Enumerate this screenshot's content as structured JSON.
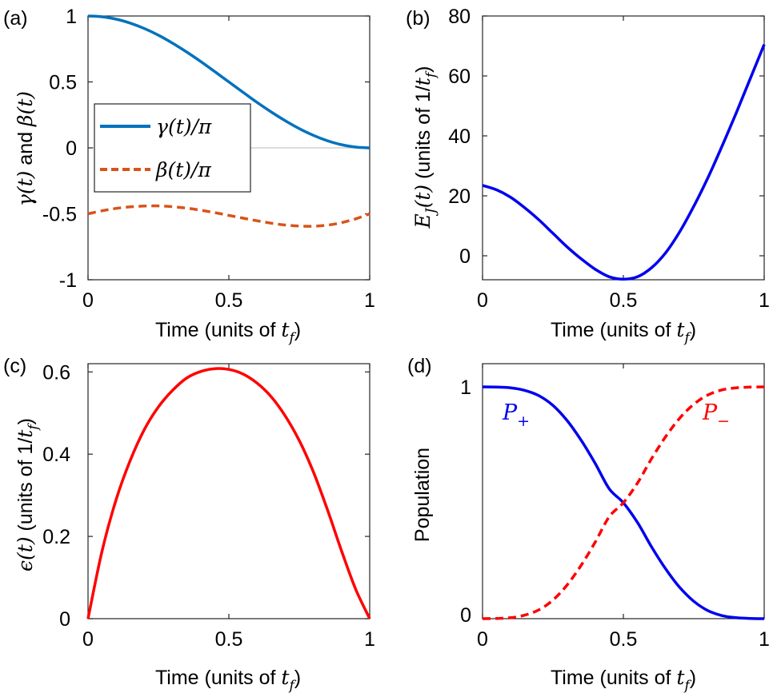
{
  "chart_data": [
    {
      "panel": "(a)",
      "type": "line",
      "xlabel_text": "Time (units of ",
      "xlabel_math": "t",
      "xlabel_sub": "f",
      "xlabel_close": ")",
      "ylabel_math1": "γ(t)",
      "ylabel_text": " and ",
      "ylabel_math2": "β(t)",
      "xlim": [
        0,
        1
      ],
      "ylim": [
        -1,
        1
      ],
      "xticks": [
        0,
        0.5,
        1
      ],
      "xtick_labels": [
        "0",
        "0.5",
        "1"
      ],
      "yticks": [
        -1,
        -0.5,
        0,
        0.5,
        1
      ],
      "ytick_labels": [
        "-1",
        "-0.5",
        "0",
        "0.5",
        "1"
      ],
      "legend_position": "center-left",
      "zero_line": true,
      "series": [
        {
          "name": "γ(t)/π",
          "color": "#0072BD",
          "dash": "solid",
          "x": [
            0,
            0.05,
            0.1,
            0.15,
            0.2,
            0.25,
            0.3,
            0.35,
            0.4,
            0.45,
            0.5,
            0.55,
            0.6,
            0.65,
            0.7,
            0.75,
            0.8,
            0.85,
            0.9,
            0.95,
            1
          ],
          "y": [
            1.0,
            0.994,
            0.976,
            0.946,
            0.905,
            0.854,
            0.794,
            0.727,
            0.655,
            0.578,
            0.5,
            0.422,
            0.345,
            0.273,
            0.206,
            0.146,
            0.095,
            0.054,
            0.024,
            0.006,
            0.0
          ]
        },
        {
          "name": "β(t)/π",
          "color": "#D95319",
          "dash": "dashed",
          "x": [
            0,
            0.05,
            0.1,
            0.15,
            0.2,
            0.25,
            0.3,
            0.35,
            0.4,
            0.45,
            0.5,
            0.55,
            0.6,
            0.65,
            0.7,
            0.75,
            0.8,
            0.85,
            0.9,
            0.95,
            1
          ],
          "y": [
            -0.5,
            -0.477,
            -0.459,
            -0.447,
            -0.441,
            -0.44,
            -0.446,
            -0.457,
            -0.473,
            -0.491,
            -0.512,
            -0.533,
            -0.553,
            -0.571,
            -0.585,
            -0.593,
            -0.594,
            -0.586,
            -0.567,
            -0.538,
            -0.5
          ]
        }
      ]
    },
    {
      "panel": "(b)",
      "type": "line",
      "xlabel_text": "Time (units of ",
      "xlabel_math": "t",
      "xlabel_sub": "f",
      "xlabel_close": ")",
      "ylabel_math": "E",
      "ylabel_math_sub": "J",
      "ylabel_math_tail": "(t)",
      "ylabel_text": " (units of 1/",
      "ylabel_math2": "t",
      "ylabel_math2_sub": "f",
      "ylabel_close": ")",
      "xlim": [
        0,
        1
      ],
      "ylim": [
        -8,
        80
      ],
      "xticks": [
        0,
        0.5,
        1
      ],
      "xtick_labels": [
        "0",
        "0.5",
        "1"
      ],
      "yticks": [
        0,
        20,
        40,
        60,
        80
      ],
      "ytick_labels": [
        "0",
        "20",
        "40",
        "60",
        "80"
      ],
      "series": [
        {
          "name": "",
          "color": "#0000EE",
          "dash": "solid",
          "x": [
            0,
            0.05,
            0.1,
            0.15,
            0.2,
            0.25,
            0.3,
            0.35,
            0.4,
            0.45,
            0.5,
            0.55,
            0.6,
            0.65,
            0.7,
            0.75,
            0.8,
            0.85,
            0.9,
            0.95,
            1
          ],
          "y": [
            23.5,
            22.0,
            19.5,
            16.0,
            12.0,
            7.5,
            3.0,
            -1.0,
            -4.5,
            -7.0,
            -7.8,
            -7.0,
            -4.0,
            1.0,
            8.0,
            16.5,
            26.0,
            36.5,
            47.5,
            59.0,
            70.5
          ]
        }
      ]
    },
    {
      "panel": "(c)",
      "type": "line",
      "xlabel_text": "Time (units of ",
      "xlabel_math": "t",
      "xlabel_sub": "f",
      "xlabel_close": ")",
      "ylabel_math": "ϵ(t)",
      "ylabel_text": " (units of 1/",
      "ylabel_math2": "t",
      "ylabel_math2_sub": "f",
      "ylabel_close": ")",
      "xlim": [
        0,
        1
      ],
      "ylim": [
        0,
        0.62
      ],
      "xticks": [
        0,
        0.5,
        1
      ],
      "xtick_labels": [
        "0",
        "0.5",
        "1"
      ],
      "yticks": [
        0,
        0.2,
        0.4,
        0.6
      ],
      "ytick_labels": [
        "0",
        "0.2",
        "0.4",
        "0.6"
      ],
      "series": [
        {
          "name": "",
          "color": "#FF0000",
          "dash": "solid",
          "x": [
            0,
            0.05,
            0.1,
            0.15,
            0.2,
            0.25,
            0.3,
            0.35,
            0.4,
            0.45,
            0.5,
            0.55,
            0.6,
            0.65,
            0.7,
            0.75,
            0.8,
            0.85,
            0.9,
            0.95,
            1
          ],
          "y": [
            0.0,
            0.165,
            0.29,
            0.385,
            0.46,
            0.515,
            0.555,
            0.585,
            0.601,
            0.608,
            0.606,
            0.595,
            0.573,
            0.54,
            0.493,
            0.433,
            0.357,
            0.265,
            0.165,
            0.072,
            0.0
          ]
        }
      ]
    },
    {
      "panel": "(d)",
      "type": "line",
      "xlabel_text": "Time (units of ",
      "xlabel_math": "t",
      "xlabel_sub": "f",
      "xlabel_close": ")",
      "ylabel": "Population",
      "xlim": [
        0,
        1
      ],
      "ylim": [
        0,
        1.1
      ],
      "xticks": [
        0,
        0.5,
        1
      ],
      "xtick_labels": [
        "0",
        "0.5",
        "1"
      ],
      "yticks": [
        0,
        1
      ],
      "ytick_labels": [
        "0",
        "1"
      ],
      "annotations": [
        {
          "text": "P",
          "sub": "+",
          "color": "#0000EE"
        },
        {
          "text": "P",
          "sub": "−",
          "color": "#FF0000"
        }
      ],
      "series": [
        {
          "name": "P+",
          "color": "#0000EE",
          "dash": "solid",
          "x": [
            0,
            0.05,
            0.1,
            0.15,
            0.2,
            0.25,
            0.3,
            0.35,
            0.4,
            0.45,
            0.5,
            0.55,
            0.6,
            0.65,
            0.7,
            0.75,
            0.8,
            0.85,
            0.9,
            0.95,
            1
          ],
          "y": [
            1.0,
            0.999,
            0.996,
            0.985,
            0.962,
            0.92,
            0.855,
            0.77,
            0.67,
            0.56,
            0.5,
            0.415,
            0.31,
            0.215,
            0.135,
            0.075,
            0.035,
            0.013,
            0.004,
            0.001,
            0.0
          ]
        },
        {
          "name": "P−",
          "color": "#FF0000",
          "dash": "dashed",
          "x": [
            0,
            0.05,
            0.1,
            0.15,
            0.2,
            0.25,
            0.3,
            0.35,
            0.4,
            0.45,
            0.5,
            0.55,
            0.6,
            0.65,
            0.7,
            0.75,
            0.8,
            0.85,
            0.9,
            0.95,
            1
          ],
          "y": [
            0.0,
            0.001,
            0.004,
            0.015,
            0.038,
            0.08,
            0.145,
            0.23,
            0.33,
            0.44,
            0.5,
            0.585,
            0.69,
            0.785,
            0.865,
            0.925,
            0.965,
            0.987,
            0.996,
            0.999,
            1.0
          ]
        }
      ]
    }
  ]
}
